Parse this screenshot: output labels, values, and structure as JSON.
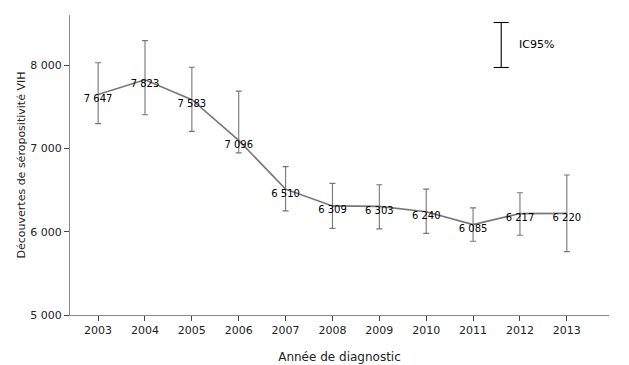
{
  "chart_data": {
    "type": "line",
    "x": [
      2003,
      2004,
      2005,
      2006,
      2007,
      2008,
      2009,
      2010,
      2011,
      2012,
      2013
    ],
    "values": [
      7647,
      7823,
      7583,
      7096,
      6510,
      6309,
      6303,
      6240,
      6085,
      6217,
      6220
    ],
    "value_labels": [
      "7 647",
      "7 823",
      "7 583",
      "7 096",
      "6 510",
      "6 309",
      "6 303",
      "6 240",
      "6 085",
      "6 217",
      "6 220"
    ],
    "data_labels": true,
    "error_bars": {
      "name": "IC95%",
      "minus": [
        350,
        420,
        380,
        150,
        260,
        270,
        270,
        260,
        200,
        260,
        460
      ],
      "plus": [
        380,
        470,
        390,
        590,
        270,
        270,
        260,
        270,
        200,
        250,
        460
      ]
    },
    "legend": "upper right",
    "color": "#777777",
    "xlabel": "Année de diagnostic",
    "ylabel": "Découvertes de séropositivité VIH",
    "xlim": [
      2002.4,
      2013.9
    ],
    "xticks": [
      2003,
      2004,
      2005,
      2006,
      2007,
      2008,
      2009,
      2010,
      2011,
      2012,
      2013
    ],
    "ylim": [
      5000,
      8600
    ],
    "yticks": [
      {
        "value": 5000,
        "label": "5 000"
      },
      {
        "value": 6000,
        "label": "6 000"
      },
      {
        "value": 7000,
        "label": "7 000"
      },
      {
        "value": 8000,
        "label": "8 000"
      }
    ],
    "grid": false
  }
}
